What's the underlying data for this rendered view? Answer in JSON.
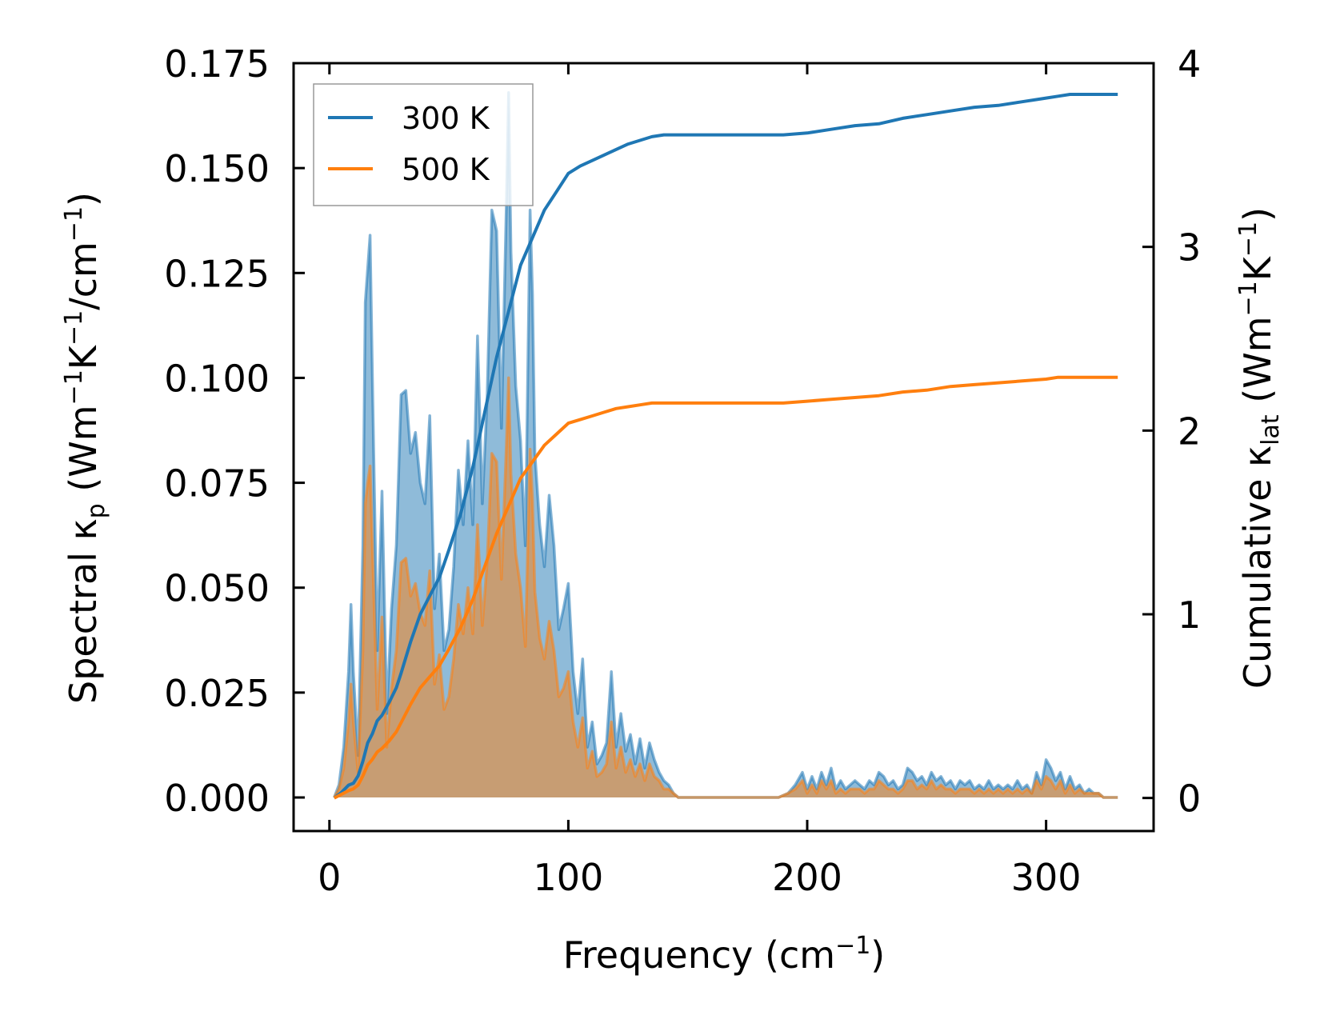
{
  "chart_data": {
    "type": "line",
    "title": "",
    "xlabel": {
      "text": "Frequency (cm",
      "sup": "−1",
      "tail": ")"
    },
    "ylabel_left": {
      "pre": "Spectral κ",
      "sub": "p",
      "open": " (Wm",
      "s1": "−1",
      "mid": "K",
      "s2": "−1",
      "rest": "/cm",
      "s3": "−1",
      "close": ")"
    },
    "ylabel_right": {
      "pre": "Cumulative κ",
      "sub": "lat",
      "open": " (Wm",
      "s1": "−1",
      "mid": "K",
      "s2": "−1",
      "close": ")"
    },
    "xlim": [
      -15,
      345
    ],
    "ylim_left": [
      -0.008,
      0.175
    ],
    "ylim_right": [
      -0.18,
      4.0
    ],
    "x_ticks": [
      0,
      100,
      200,
      300
    ],
    "x_tick_labels": [
      "0",
      "100",
      "200",
      "300"
    ],
    "y_left_ticks": [
      0,
      0.025,
      0.05,
      0.075,
      0.1,
      0.125,
      0.15,
      0.175
    ],
    "y_left_tick_labels": [
      "0.000",
      "0.025",
      "0.050",
      "0.075",
      "0.100",
      "0.125",
      "0.150",
      "0.175"
    ],
    "y_right_ticks": [
      0,
      1,
      2,
      3,
      4
    ],
    "y_right_tick_labels": [
      "0",
      "1",
      "2",
      "3",
      "4"
    ],
    "legend": {
      "position": "top-left",
      "entries": [
        "300 K",
        "500 K"
      ]
    },
    "colors": {
      "300 K": "#1f77b4",
      "500 K": "#ff7f0e",
      "spectral_300_fill": "#1f77b4",
      "spectral_500_fill": "#ff7f0e"
    },
    "series": [
      {
        "name": "300 K",
        "kind": "spectral",
        "axis": "left",
        "x": [
          2,
          4,
          6,
          8,
          9,
          10,
          12,
          14,
          15,
          16,
          17,
          18,
          20,
          22,
          24,
          26,
          28,
          30,
          32,
          34,
          36,
          38,
          40,
          42,
          44,
          46,
          48,
          50,
          52,
          54,
          56,
          58,
          60,
          62,
          64,
          66,
          68,
          70,
          72,
          74,
          75,
          76,
          78,
          80,
          82,
          84,
          85,
          86,
          88,
          90,
          92,
          94,
          96,
          98,
          100,
          102,
          104,
          106,
          108,
          110,
          112,
          114,
          116,
          118,
          120,
          122,
          124,
          126,
          128,
          130,
          132,
          134,
          136,
          138,
          140,
          142,
          144,
          146,
          150,
          160,
          170,
          180,
          188,
          192,
          195,
          198,
          200,
          202,
          204,
          206,
          208,
          210,
          212,
          214,
          216,
          218,
          220,
          222,
          224,
          226,
          228,
          230,
          232,
          234,
          236,
          238,
          240,
          242,
          244,
          246,
          248,
          250,
          252,
          254,
          256,
          258,
          260,
          262,
          264,
          266,
          268,
          270,
          272,
          274,
          276,
          278,
          280,
          282,
          284,
          286,
          288,
          290,
          292,
          294,
          296,
          298,
          300,
          302,
          304,
          306,
          308,
          310,
          312,
          314,
          316,
          318,
          320,
          322,
          324,
          326,
          328,
          330
        ],
        "y": [
          0.0,
          0.003,
          0.012,
          0.03,
          0.046,
          0.03,
          0.01,
          0.06,
          0.118,
          0.126,
          0.134,
          0.1,
          0.035,
          0.073,
          0.02,
          0.045,
          0.06,
          0.096,
          0.097,
          0.082,
          0.087,
          0.075,
          0.07,
          0.091,
          0.045,
          0.058,
          0.035,
          0.04,
          0.055,
          0.078,
          0.065,
          0.085,
          0.065,
          0.11,
          0.07,
          0.095,
          0.14,
          0.135,
          0.088,
          0.14,
          0.168,
          0.13,
          0.098,
          0.085,
          0.06,
          0.14,
          0.12,
          0.082,
          0.065,
          0.055,
          0.072,
          0.06,
          0.04,
          0.045,
          0.051,
          0.03,
          0.02,
          0.033,
          0.012,
          0.018,
          0.008,
          0.01,
          0.013,
          0.03,
          0.012,
          0.02,
          0.011,
          0.015,
          0.008,
          0.014,
          0.007,
          0.013,
          0.009,
          0.006,
          0.004,
          0.003,
          0.001,
          0.0,
          0.0,
          0.0,
          0.0,
          0.0,
          0.0,
          0.001,
          0.003,
          0.006,
          0.002,
          0.005,
          0.002,
          0.006,
          0.003,
          0.007,
          0.002,
          0.004,
          0.002,
          0.003,
          0.004,
          0.003,
          0.002,
          0.004,
          0.003,
          0.006,
          0.005,
          0.003,
          0.004,
          0.002,
          0.003,
          0.007,
          0.006,
          0.004,
          0.005,
          0.003,
          0.006,
          0.004,
          0.005,
          0.003,
          0.004,
          0.002,
          0.004,
          0.003,
          0.004,
          0.002,
          0.003,
          0.002,
          0.004,
          0.002,
          0.003,
          0.002,
          0.003,
          0.002,
          0.004,
          0.002,
          0.003,
          0.001,
          0.006,
          0.003,
          0.009,
          0.007,
          0.004,
          0.006,
          0.002,
          0.005,
          0.002,
          0.003,
          0.001,
          0.002,
          0.001,
          0.001,
          0.0,
          0.0,
          0.0,
          0.0
        ]
      },
      {
        "name": "500 K",
        "kind": "spectral",
        "axis": "left",
        "x": [
          2,
          4,
          6,
          8,
          9,
          10,
          12,
          14,
          15,
          16,
          17,
          18,
          20,
          22,
          24,
          26,
          28,
          30,
          32,
          34,
          36,
          38,
          40,
          42,
          44,
          46,
          48,
          50,
          52,
          54,
          56,
          58,
          60,
          62,
          64,
          66,
          68,
          70,
          72,
          74,
          75,
          76,
          78,
          80,
          82,
          84,
          85,
          86,
          88,
          90,
          92,
          94,
          96,
          98,
          100,
          102,
          104,
          106,
          108,
          110,
          112,
          114,
          116,
          118,
          120,
          122,
          124,
          126,
          128,
          130,
          132,
          134,
          136,
          138,
          140,
          142,
          144,
          146,
          150,
          160,
          170,
          180,
          188,
          192,
          195,
          198,
          200,
          202,
          204,
          206,
          208,
          210,
          212,
          214,
          216,
          218,
          220,
          222,
          224,
          226,
          228,
          230,
          232,
          234,
          236,
          238,
          240,
          242,
          244,
          246,
          248,
          250,
          252,
          254,
          256,
          258,
          260,
          262,
          264,
          266,
          268,
          270,
          272,
          274,
          276,
          278,
          280,
          282,
          284,
          286,
          288,
          290,
          292,
          294,
          296,
          298,
          300,
          302,
          304,
          306,
          308,
          310,
          312,
          314,
          316,
          318,
          320,
          322,
          324,
          326,
          328,
          330
        ],
        "y": [
          0.0,
          0.002,
          0.007,
          0.018,
          0.027,
          0.018,
          0.006,
          0.035,
          0.07,
          0.075,
          0.079,
          0.06,
          0.021,
          0.043,
          0.012,
          0.026,
          0.035,
          0.056,
          0.057,
          0.048,
          0.051,
          0.044,
          0.041,
          0.054,
          0.027,
          0.034,
          0.021,
          0.024,
          0.033,
          0.046,
          0.039,
          0.05,
          0.039,
          0.065,
          0.041,
          0.056,
          0.082,
          0.08,
          0.052,
          0.083,
          0.1,
          0.077,
          0.058,
          0.05,
          0.036,
          0.083,
          0.071,
          0.049,
          0.038,
          0.033,
          0.042,
          0.035,
          0.024,
          0.026,
          0.03,
          0.018,
          0.012,
          0.019,
          0.007,
          0.011,
          0.005,
          0.006,
          0.008,
          0.018,
          0.007,
          0.012,
          0.006,
          0.009,
          0.005,
          0.008,
          0.004,
          0.008,
          0.005,
          0.004,
          0.002,
          0.002,
          0.001,
          0.0,
          0.0,
          0.0,
          0.0,
          0.0,
          0.0,
          0.001,
          0.002,
          0.004,
          0.001,
          0.003,
          0.001,
          0.004,
          0.002,
          0.004,
          0.001,
          0.002,
          0.001,
          0.002,
          0.002,
          0.002,
          0.001,
          0.002,
          0.002,
          0.004,
          0.003,
          0.002,
          0.002,
          0.001,
          0.002,
          0.004,
          0.004,
          0.002,
          0.003,
          0.002,
          0.004,
          0.002,
          0.003,
          0.002,
          0.002,
          0.001,
          0.002,
          0.002,
          0.002,
          0.001,
          0.002,
          0.001,
          0.002,
          0.001,
          0.002,
          0.001,
          0.002,
          0.001,
          0.002,
          0.001,
          0.002,
          0.001,
          0.004,
          0.002,
          0.005,
          0.004,
          0.002,
          0.004,
          0.001,
          0.003,
          0.001,
          0.002,
          0.001,
          0.001,
          0.001,
          0.001,
          0.0,
          0.0,
          0.0,
          0.0
        ]
      },
      {
        "name": "300 K",
        "kind": "cumulative",
        "axis": "right",
        "x": [
          2,
          5,
          8,
          10,
          12,
          14,
          16,
          18,
          20,
          22,
          25,
          28,
          30,
          34,
          38,
          42,
          46,
          50,
          55,
          60,
          65,
          70,
          75,
          80,
          85,
          90,
          95,
          100,
          105,
          110,
          115,
          120,
          125,
          130,
          135,
          140,
          145,
          150,
          160,
          170,
          180,
          190,
          200,
          210,
          220,
          230,
          240,
          250,
          260,
          270,
          280,
          290,
          300,
          305,
          310,
          320,
          330
        ],
        "y": [
          0.0,
          0.03,
          0.07,
          0.08,
          0.12,
          0.2,
          0.3,
          0.35,
          0.42,
          0.45,
          0.52,
          0.6,
          0.68,
          0.85,
          1.0,
          1.1,
          1.2,
          1.35,
          1.55,
          1.8,
          2.1,
          2.4,
          2.65,
          2.9,
          3.05,
          3.2,
          3.3,
          3.4,
          3.44,
          3.47,
          3.5,
          3.53,
          3.56,
          3.58,
          3.6,
          3.61,
          3.61,
          3.61,
          3.61,
          3.61,
          3.61,
          3.61,
          3.62,
          3.64,
          3.66,
          3.67,
          3.7,
          3.72,
          3.74,
          3.76,
          3.77,
          3.79,
          3.81,
          3.82,
          3.83,
          3.83,
          3.83
        ]
      },
      {
        "name": "500 K",
        "kind": "cumulative",
        "axis": "right",
        "x": [
          2,
          5,
          8,
          10,
          12,
          14,
          16,
          18,
          20,
          22,
          25,
          28,
          30,
          34,
          38,
          42,
          46,
          50,
          55,
          60,
          65,
          70,
          75,
          80,
          85,
          90,
          95,
          100,
          105,
          110,
          115,
          120,
          125,
          130,
          135,
          140,
          145,
          150,
          160,
          170,
          180,
          190,
          200,
          210,
          220,
          230,
          240,
          250,
          260,
          270,
          280,
          290,
          300,
          305,
          310,
          320,
          330
        ],
        "y": [
          0.0,
          0.02,
          0.04,
          0.05,
          0.07,
          0.12,
          0.18,
          0.21,
          0.25,
          0.27,
          0.31,
          0.36,
          0.41,
          0.51,
          0.6,
          0.66,
          0.72,
          0.81,
          0.93,
          1.08,
          1.26,
          1.44,
          1.59,
          1.74,
          1.83,
          1.92,
          1.98,
          2.04,
          2.06,
          2.08,
          2.1,
          2.12,
          2.13,
          2.14,
          2.15,
          2.15,
          2.15,
          2.15,
          2.15,
          2.15,
          2.15,
          2.15,
          2.16,
          2.17,
          2.18,
          2.19,
          2.21,
          2.22,
          2.24,
          2.25,
          2.26,
          2.27,
          2.28,
          2.29,
          2.29,
          2.29,
          2.29
        ]
      }
    ]
  }
}
